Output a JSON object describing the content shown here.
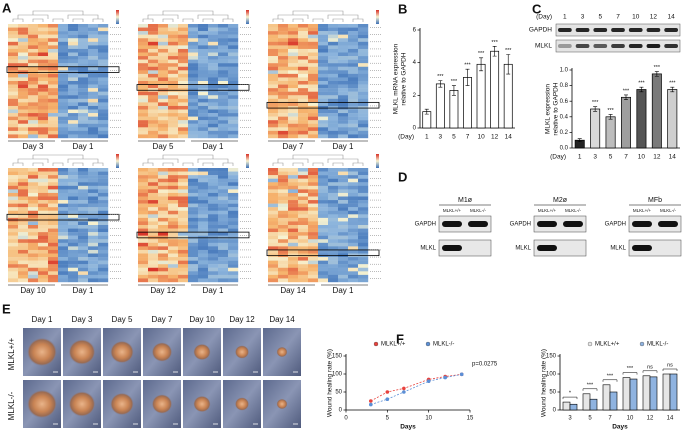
{
  "panel_labels": [
    "A",
    "B",
    "C",
    "D",
    "E",
    "F"
  ],
  "heatmaps": [
    {
      "left": "Day 3",
      "right": "Day 1"
    },
    {
      "left": "Day 5",
      "right": "Day 1"
    },
    {
      "left": "Day 7",
      "right": "Day 1"
    },
    {
      "left": "Day 10",
      "right": "Day 1"
    },
    {
      "left": "Day 12",
      "right": "Day 1"
    },
    {
      "left": "Day 14",
      "right": "Day 1"
    }
  ],
  "blot_c": {
    "day_label": "(Day)",
    "days": [
      "1",
      "3",
      "5",
      "7",
      "10",
      "12",
      "14"
    ],
    "rows": [
      "GAPDH",
      "MLKL"
    ]
  },
  "blot_d": [
    {
      "title": "M1ø",
      "columns": [
        "MLKL+/+",
        "MLKL-/-"
      ],
      "rows": [
        "GAPDH",
        "MLKL"
      ]
    },
    {
      "title": "M2ø",
      "columns": [
        "MLKL+/+",
        "MLKL-/-"
      ],
      "rows": [
        "GAPDH",
        "MLKL"
      ]
    },
    {
      "title": "MFb",
      "columns": [
        "MLKL+/+",
        "MLKL-/-"
      ],
      "rows": [
        "GAPDH",
        "MLKL"
      ]
    }
  ],
  "photos": {
    "days": [
      "Day 1",
      "Day 3",
      "Day 5",
      "Day 7",
      "Day 10",
      "Day 12",
      "Day 14"
    ],
    "rows": [
      "MLKL+/+",
      "MLKL-/-"
    ]
  },
  "chart_data": [
    {
      "type": "bar",
      "ylabel": [
        "MLKL mRNA expression",
        "relative to GAPDH"
      ],
      "xlabel": "(Day)",
      "categories": [
        "1",
        "3",
        "5",
        "7",
        "10",
        "12",
        "14"
      ],
      "values": [
        1.0,
        2.7,
        2.3,
        3.1,
        3.9,
        4.7,
        3.9
      ],
      "errors": [
        0.15,
        0.2,
        0.3,
        0.5,
        0.4,
        0.3,
        0.6
      ],
      "annotations": [
        null,
        "***",
        "***",
        "***",
        "***",
        "***",
        "***"
      ],
      "color": "#ffffff",
      "ylim": [
        0,
        6
      ],
      "yticks": [
        0,
        2,
        4,
        6
      ]
    },
    {
      "type": "bar",
      "ylabel": [
        "MLKL expression",
        "relative to GAPDH"
      ],
      "xlabel": "(Day)",
      "categories": [
        "1",
        "3",
        "5",
        "7",
        "10",
        "12",
        "14"
      ],
      "values": [
        0.1,
        0.5,
        0.4,
        0.65,
        0.75,
        0.95,
        0.75
      ],
      "errors": [
        0.02,
        0.03,
        0.03,
        0.03,
        0.03,
        0.03,
        0.03
      ],
      "annotations": [
        null,
        "***",
        "***",
        "***",
        "***",
        "***",
        "***"
      ],
      "colors": [
        "#222222",
        "#d9d9d9",
        "#bdbdbd",
        "#9e9e9e",
        "#555555",
        "#7a7a7a",
        "#cfcfcf"
      ],
      "ylim": [
        0,
        1.0
      ],
      "yticks": [
        {
          "value": 0,
          "label": "0.0"
        },
        {
          "value": 0.2,
          "label": "0.2"
        },
        {
          "value": 0.4,
          "label": "0.4"
        },
        {
          "value": 0.6,
          "label": "0.6"
        },
        {
          "value": 0.8,
          "label": "0.8"
        },
        {
          "value": 1.0,
          "label": "1.0"
        }
      ]
    },
    {
      "type": "line",
      "ylabel": [
        "Wound healing rate (%)"
      ],
      "xlabel": "Days",
      "x": [
        3,
        5,
        7,
        10,
        12,
        14
      ],
      "series": [
        {
          "name": "MLKL+/+",
          "color": "#e8413c",
          "values": [
            25,
            50,
            60,
            85,
            93,
            99
          ]
        },
        {
          "name": "MLKL-/-",
          "color": "#5b8fd6",
          "values": [
            15,
            30,
            50,
            80,
            90,
            99
          ]
        }
      ],
      "annotation": "p=0.0275",
      "xlim": [
        0,
        15
      ],
      "xticks": [
        0,
        5,
        10,
        15
      ],
      "ylim": [
        0,
        150
      ],
      "yticks": [
        0,
        50,
        100,
        150
      ]
    },
    {
      "type": "grouped_bar",
      "ylabel": [
        "Wound healing rate (%)"
      ],
      "xlabel": "Days",
      "categories": [
        "3",
        "5",
        "7",
        "10",
        "12",
        "14"
      ],
      "series": [
        {
          "name": "MLKL+/+",
          "color": "#e6e6e6",
          "values": [
            22,
            45,
            70,
            90,
            95,
            100
          ]
        },
        {
          "name": "MLKL-/-",
          "color": "#8fb3e0",
          "values": [
            16,
            30,
            50,
            86,
            92,
            100
          ]
        }
      ],
      "annotations": [
        "*",
        "***",
        "***",
        "***",
        "ns",
        "ns"
      ],
      "ylim": [
        0,
        150
      ],
      "yticks": [
        0,
        50,
        100,
        150
      ]
    }
  ]
}
